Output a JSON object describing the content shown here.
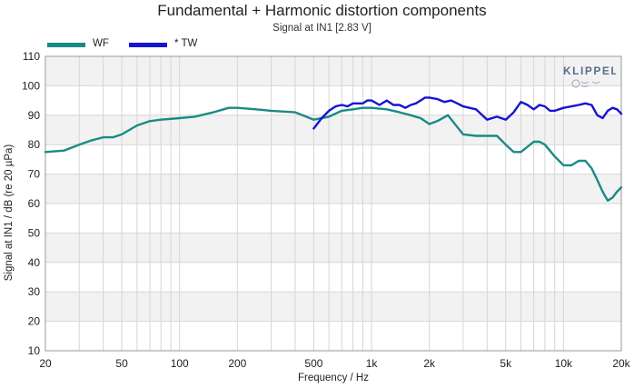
{
  "chart_data": {
    "type": "line",
    "title": "Fundamental + Harmonic distortion components",
    "subtitle": "Signal at IN1 [2.83 V]",
    "xlabel": "Frequency / Hz",
    "ylabel": "Signal at IN1 / dB (re 20 µPa)",
    "xscale": "log",
    "xlim": [
      20,
      20000
    ],
    "ylim": [
      10,
      110
    ],
    "x_ticks": [
      20,
      50,
      100,
      200,
      500,
      1000,
      2000,
      5000,
      10000,
      20000
    ],
    "x_tick_labels": [
      "20",
      "50",
      "100",
      "200",
      "500",
      "1k",
      "2k",
      "5k",
      "10k",
      "20k"
    ],
    "y_ticks": [
      10,
      20,
      30,
      40,
      50,
      60,
      70,
      80,
      90,
      100,
      110
    ],
    "grid": true,
    "legend": "top-left",
    "series": [
      {
        "name": "WF",
        "color": "#1a8a86",
        "x": [
          20,
          25,
          30,
          35,
          40,
          45,
          50,
          60,
          70,
          80,
          100,
          120,
          150,
          180,
          200,
          250,
          300,
          400,
          500,
          600,
          700,
          800,
          900,
          1000,
          1200,
          1400,
          1600,
          1800,
          2000,
          2200,
          2500,
          3000,
          3500,
          4000,
          4500,
          5000,
          5500,
          6000,
          7000,
          7500,
          8000,
          9000,
          10000,
          11000,
          12000,
          13000,
          14000,
          15000,
          16000,
          17000,
          18000,
          19000,
          20000
        ],
        "values": [
          77.5,
          78,
          80,
          81.5,
          82.5,
          82.5,
          83.5,
          86.5,
          88,
          88.5,
          89,
          89.5,
          91,
          92.5,
          92.5,
          92,
          91.5,
          91,
          88.5,
          89.5,
          91.5,
          92,
          92.5,
          92.5,
          92,
          91,
          90,
          89,
          87,
          88,
          90,
          83.5,
          83,
          83,
          83,
          80,
          77.5,
          77.5,
          81,
          81,
          80,
          76,
          73,
          73,
          74.5,
          74.5,
          72,
          68,
          64,
          61,
          62,
          64,
          65.5
        ]
      },
      {
        "name": "* TW",
        "color": "#1414d2",
        "x": [
          500,
          550,
          600,
          650,
          700,
          750,
          800,
          850,
          900,
          950,
          1000,
          1100,
          1200,
          1300,
          1400,
          1500,
          1600,
          1700,
          1800,
          1900,
          2000,
          2200,
          2400,
          2600,
          2800,
          3000,
          3500,
          4000,
          4500,
          5000,
          5500,
          6000,
          6500,
          7000,
          7500,
          8000,
          8500,
          9000,
          10000,
          11000,
          12000,
          13000,
          14000,
          15000,
          16000,
          17000,
          18000,
          19000,
          20000
        ],
        "values": [
          85.5,
          89,
          91.5,
          93,
          93.5,
          93,
          94,
          94,
          94,
          95,
          95,
          93.5,
          95,
          93.5,
          93.5,
          92.5,
          93.5,
          94,
          95,
          96,
          96,
          95.5,
          94.5,
          95,
          94,
          93,
          92,
          88.5,
          89.5,
          88.5,
          91,
          94.5,
          93.5,
          92,
          93.5,
          93,
          91.5,
          91.5,
          92.5,
          93,
          93.5,
          94,
          93.5,
          90,
          89,
          91.5,
          92.5,
          92,
          90.5
        ]
      }
    ]
  },
  "logo_text": "KLIPPEL"
}
